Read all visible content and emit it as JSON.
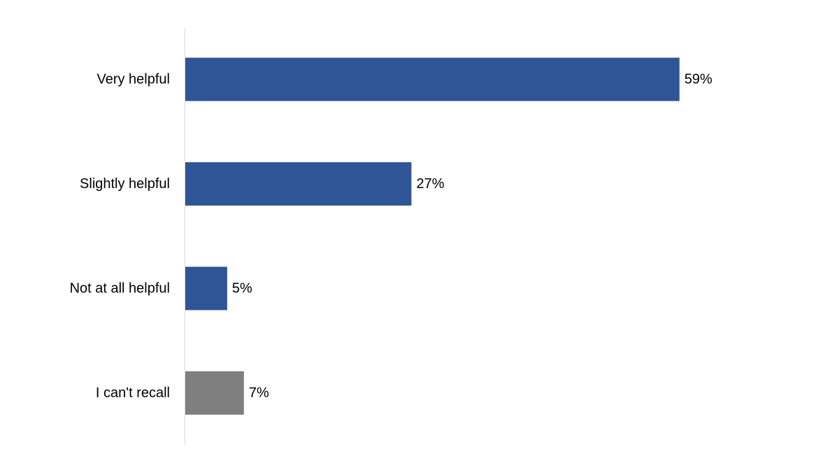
{
  "chart_data": {
    "type": "bar",
    "orientation": "horizontal",
    "categories": [
      "Very helpful",
      "Slightly helpful",
      "Not at all helpful",
      "I can't recall"
    ],
    "values": [
      59,
      27,
      5,
      7
    ],
    "value_labels": [
      "59%",
      "27%",
      "5%",
      "7%"
    ],
    "unit": "%",
    "xlim": [
      0,
      100
    ],
    "grid": false,
    "legend": "none",
    "title": "",
    "xlabel": "",
    "ylabel": "",
    "bar_colors": [
      "#2F5597",
      "#2F5597",
      "#2F5597",
      "#7F7F7F"
    ],
    "axis_color": "#D9D9D9"
  }
}
